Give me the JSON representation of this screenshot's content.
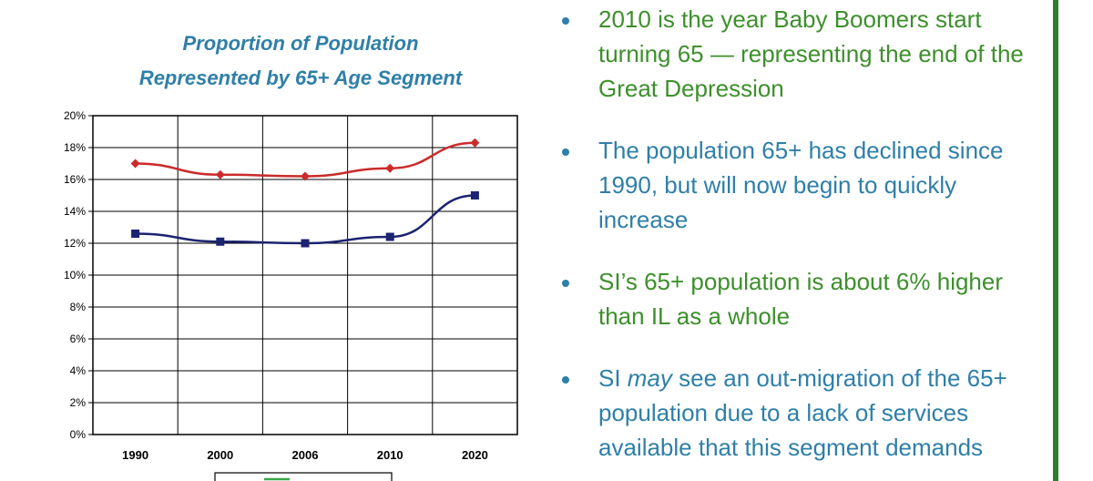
{
  "colors": {
    "title": "#2f7fa8",
    "bullet_green": "#3d8f2c",
    "bullet_blue": "#2f7fa8",
    "series_red": "#cc2a2a",
    "series_navy": "#1c2370",
    "legend_green": "#3aa64a",
    "rule_green": "#2f7d2b"
  },
  "chart_data": {
    "type": "line",
    "title": "Proportion of Population Represented by 65+ Age Segment",
    "title_lines": [
      "Proportion of Population",
      "Represented by 65+ Age Segment"
    ],
    "categories": [
      "1990",
      "2000",
      "2006",
      "2010",
      "2020"
    ],
    "y_ticks": [
      "0%",
      "2%",
      "4%",
      "6%",
      "8%",
      "10%",
      "12%",
      "14%",
      "16%",
      "18%",
      "20%"
    ],
    "ylim": [
      0,
      20
    ],
    "grid": true,
    "series": [
      {
        "name": "",
        "color": "#cc2a2a",
        "marker": "diamond",
        "values": [
          17.0,
          16.3,
          16.2,
          16.7,
          18.3
        ]
      },
      {
        "name": "",
        "color": "#1c2370",
        "marker": "square",
        "values": [
          12.6,
          12.1,
          12.0,
          12.4,
          15.0
        ]
      }
    ],
    "legend": "bottom",
    "xlabel": "",
    "ylabel": ""
  },
  "bullets": [
    {
      "color": "green",
      "text": "2010 is the year Baby Boomers start turning 65 — representing the end of the Great Depression"
    },
    {
      "color": "blue",
      "text": "The population 65+ has declined since 1990, but will now begin to quickly increase"
    },
    {
      "color": "green",
      "text": "SI’s 65+ population is about 6% higher than IL as a whole"
    },
    {
      "color": "blue",
      "parts": [
        "SI ",
        "may",
        " see an out-migration of the 65+ population due to a lack of services available that this segment demands"
      ]
    }
  ]
}
